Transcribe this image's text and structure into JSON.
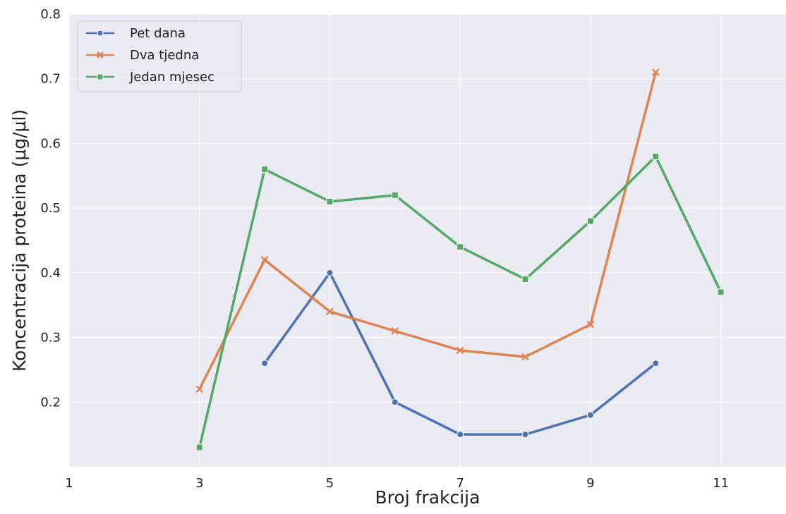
{
  "chart_data": {
    "type": "line",
    "xlabel": "Broj frakcija",
    "ylabel": "Koncentracija proteina (μg/μl)",
    "xlim": [
      1,
      12
    ],
    "ylim": [
      0.1,
      0.8
    ],
    "xticks": [
      1,
      3,
      5,
      7,
      9,
      11
    ],
    "yticks": [
      0.2,
      0.3,
      0.4,
      0.5,
      0.6,
      0.7,
      0.8
    ],
    "ytick_labels": [
      "0.2",
      "0.3",
      "0.4",
      "0.5",
      "0.6",
      "0.7",
      "0.8"
    ],
    "grid": true,
    "background": "#EAEAF2",
    "legend_position": "top-left",
    "series": [
      {
        "name": "Pet dana",
        "color": "#4C72B0",
        "marker": "circle",
        "x": [
          4,
          5,
          6,
          7,
          8,
          9,
          10
        ],
        "y": [
          0.26,
          0.4,
          0.2,
          0.15,
          0.15,
          0.18,
          0.26
        ]
      },
      {
        "name": "Dva tjedna",
        "color": "#DD8452",
        "marker": "x",
        "x": [
          3,
          4,
          5,
          6,
          7,
          8,
          9,
          10
        ],
        "y": [
          0.22,
          0.42,
          0.34,
          0.31,
          0.28,
          0.27,
          0.32,
          0.71
        ]
      },
      {
        "name": "Jedan mjesec",
        "color": "#55A868",
        "marker": "square",
        "x": [
          3,
          4,
          5,
          6,
          7,
          8,
          9,
          10,
          11
        ],
        "y": [
          0.13,
          0.56,
          0.51,
          0.52,
          0.44,
          0.39,
          0.48,
          0.58,
          0.37
        ]
      }
    ]
  }
}
